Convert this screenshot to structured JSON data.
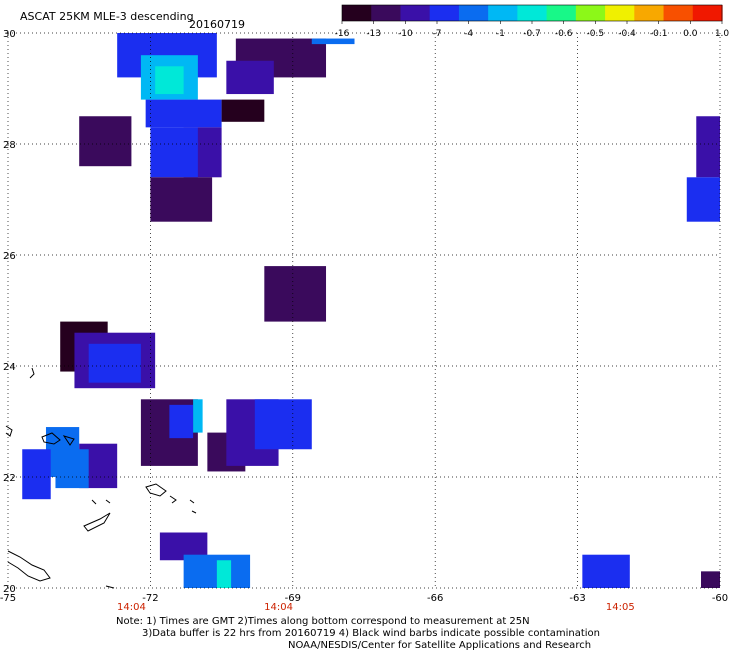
{
  "header": {
    "title": "ASCAT 25KM MLE-3 descending",
    "date": "20160719"
  },
  "colorbar": {
    "labels": [
      "-16",
      "-13",
      "-10",
      "-7",
      "-4",
      "-1",
      "-0.7",
      "-0.6",
      "-0.5",
      "-0.4",
      "-0.1",
      "0.0",
      "1.0"
    ],
    "colors": [
      "#25001e",
      "#3a0a5c",
      "#3a10a8",
      "#1b2ef0",
      "#0a6cf0",
      "#00b8f4",
      "#00e8d8",
      "#18f888",
      "#8cf818",
      "#f0f000",
      "#f8a800",
      "#f85000",
      "#f01800"
    ]
  },
  "footer": {
    "time_labels": [
      "14:04",
      "14:04",
      "14:05"
    ],
    "note_line1": "Note: 1) Times are GMT 2)Times along bottom correspond to measurement at 25N",
    "note_line2": "3)Data buffer is 22 hrs from 20160719 4) Black wind barbs indicate possible contamination",
    "note_line3": "NOAA/NESDIS/Center for Satellite Applications and Research"
  },
  "chart_data": {
    "type": "heatmap",
    "title": "ASCAT 25KM MLE-3 descending",
    "xlim": [
      -75,
      -60
    ],
    "ylim": [
      20,
      30
    ],
    "x_ticks": [
      "-75",
      "-72",
      "-69",
      "-66",
      "-63",
      "-60"
    ],
    "y_ticks": [
      "20",
      "22",
      "24",
      "26",
      "28",
      "30"
    ],
    "x_tick_values": [
      -75,
      -72,
      -69,
      -66,
      -63,
      -60
    ],
    "y_tick_values": [
      20,
      22,
      24,
      26,
      28,
      30
    ],
    "time_ticks": [
      {
        "lon": -72.4,
        "label": "14:04"
      },
      {
        "lon": -69.3,
        "label": "14:04"
      },
      {
        "lon": -62.1,
        "label": "14:05"
      }
    ],
    "grid": true,
    "colorbar_levels": [
      -16,
      -13,
      -10,
      -7,
      -4,
      -1,
      -0.7,
      -0.6,
      -0.5,
      -0.4,
      -0.1,
      0.0,
      1.0
    ],
    "cells": [
      {
        "lon0": -72.7,
        "lon1": -70.6,
        "lat0": 29.2,
        "lat1": 30.0,
        "value": -7
      },
      {
        "lon0": -72.2,
        "lon1": -71.0,
        "lat0": 28.8,
        "lat1": 29.6,
        "value": -1
      },
      {
        "lon0": -71.9,
        "lon1": -71.3,
        "lat0": 28.9,
        "lat1": 29.4,
        "value": -0.7
      },
      {
        "lon0": -72.1,
        "lon1": -70.5,
        "lat0": 28.3,
        "lat1": 28.8,
        "value": -7
      },
      {
        "lon0": -71.3,
        "lon1": -70.5,
        "lat0": 27.4,
        "lat1": 28.3,
        "value": -10
      },
      {
        "lon0": -72.0,
        "lon1": -71.0,
        "lat0": 27.4,
        "lat1": 28.3,
        "value": -7
      },
      {
        "lon0": -73.5,
        "lon1": -72.4,
        "lat0": 27.6,
        "lat1": 28.5,
        "value": -13
      },
      {
        "lon0": -72.0,
        "lon1": -70.7,
        "lat0": 26.6,
        "lat1": 27.4,
        "value": -13
      },
      {
        "lon0": -70.1,
        "lon1": -69.5,
        "lat0": 29.0,
        "lat1": 29.5,
        "value": -10
      },
      {
        "lon0": -70.2,
        "lon1": -68.3,
        "lat0": 29.2,
        "lat1": 29.9,
        "value": -13
      },
      {
        "lon0": -70.4,
        "lon1": -69.4,
        "lat0": 28.9,
        "lat1": 29.5,
        "value": -10
      },
      {
        "lon0": -70.5,
        "lon1": -69.6,
        "lat0": 28.4,
        "lat1": 28.8,
        "value": -16
      },
      {
        "lon0": -68.6,
        "lon1": -67.7,
        "lat0": 29.8,
        "lat1": 29.9,
        "value": -4
      },
      {
        "lon0": -60.5,
        "lon1": -60.0,
        "lat0": 27.4,
        "lat1": 28.5,
        "value": -10
      },
      {
        "lon0": -60.7,
        "lon1": -60.0,
        "lat0": 26.6,
        "lat1": 27.4,
        "value": -7
      },
      {
        "lon0": -69.6,
        "lon1": -68.3,
        "lat0": 24.8,
        "lat1": 25.8,
        "value": -13
      },
      {
        "lon0": -73.9,
        "lon1": -72.9,
        "lat0": 23.9,
        "lat1": 24.8,
        "value": -16
      },
      {
        "lon0": -73.6,
        "lon1": -71.9,
        "lat0": 23.6,
        "lat1": 24.6,
        "value": -10
      },
      {
        "lon0": -73.3,
        "lon1": -72.2,
        "lat0": 23.7,
        "lat1": 24.4,
        "value": -7
      },
      {
        "lon0": -72.2,
        "lon1": -71.0,
        "lat0": 22.2,
        "lat1": 23.4,
        "value": -13
      },
      {
        "lon0": -71.6,
        "lon1": -71.1,
        "lat0": 22.7,
        "lat1": 23.3,
        "value": -7
      },
      {
        "lon0": -71.1,
        "lon1": -70.9,
        "lat0": 22.8,
        "lat1": 23.4,
        "value": -1
      },
      {
        "lon0": -70.8,
        "lon1": -70.0,
        "lat0": 22.1,
        "lat1": 22.8,
        "value": -13
      },
      {
        "lon0": -70.4,
        "lon1": -69.3,
        "lat0": 22.2,
        "lat1": 23.4,
        "value": -10
      },
      {
        "lon0": -69.8,
        "lon1": -68.6,
        "lat0": 22.5,
        "lat1": 23.4,
        "value": -7
      },
      {
        "lon0": -74.2,
        "lon1": -73.5,
        "lat0": 22.0,
        "lat1": 22.9,
        "value": -4
      },
      {
        "lon0": -74.7,
        "lon1": -74.1,
        "lat0": 21.6,
        "lat1": 22.5,
        "value": -7
      },
      {
        "lon0": -73.5,
        "lon1": -72.7,
        "lat0": 21.8,
        "lat1": 22.6,
        "value": -10
      },
      {
        "lon0": -74.0,
        "lon1": -73.3,
        "lat0": 21.8,
        "lat1": 22.5,
        "value": -4
      },
      {
        "lon0": -71.8,
        "lon1": -70.8,
        "lat0": 20.5,
        "lat1": 21.0,
        "value": -10
      },
      {
        "lon0": -71.3,
        "lon1": -69.9,
        "lat0": 20.0,
        "lat1": 20.6,
        "value": -4
      },
      {
        "lon0": -70.6,
        "lon1": -70.3,
        "lat0": 20.0,
        "lat1": 20.5,
        "value": -0.7
      },
      {
        "lon0": -62.9,
        "lon1": -61.9,
        "lat0": 20.0,
        "lat1": 20.6,
        "value": -7
      },
      {
        "lon0": -60.4,
        "lon1": -60.0,
        "lat0": 20.0,
        "lat1": 20.3,
        "value": -13
      }
    ]
  }
}
